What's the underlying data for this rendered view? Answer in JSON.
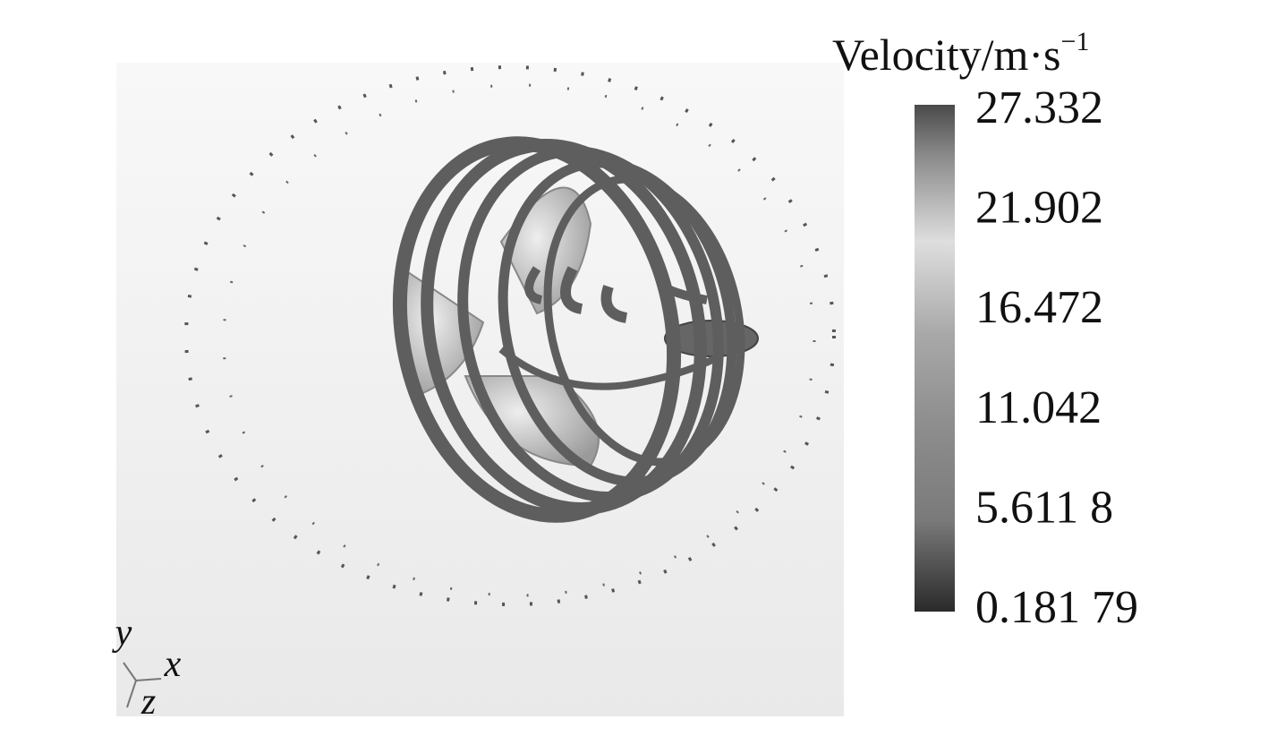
{
  "colorbar": {
    "title": "Velocity/m·s",
    "title_superscript": "−1",
    "labels": [
      "27.332",
      "21.902",
      "16.472",
      "11.042",
      "5.611 8",
      "0.181 79"
    ]
  },
  "axes_triad": {
    "y": "y",
    "x": "x",
    "z": "z"
  }
}
